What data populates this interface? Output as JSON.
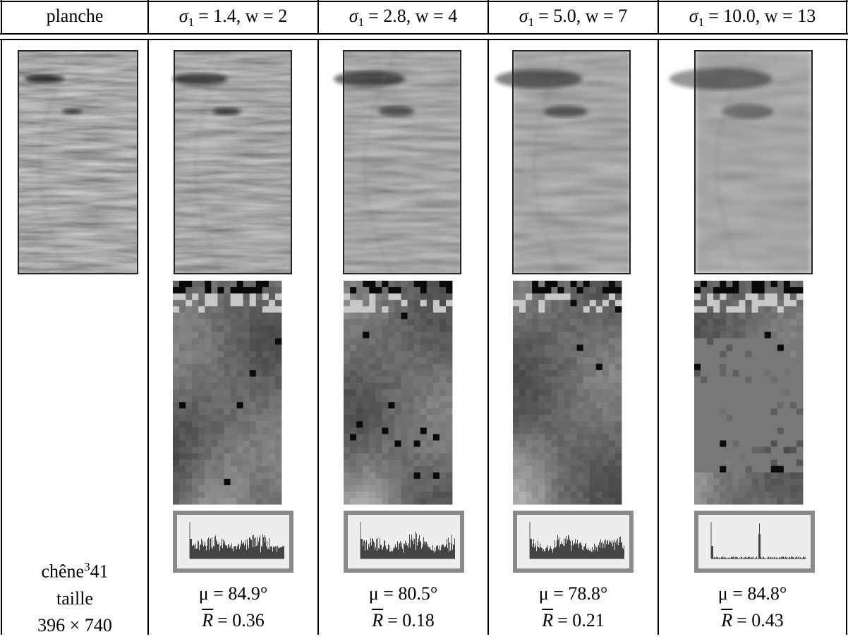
{
  "table": {
    "header": {
      "first": "planche",
      "columns": [
        {
          "symbol": "σ",
          "sub": "1",
          "rest": "= 1.4, w = 2"
        },
        {
          "symbol": "σ",
          "sub": "1",
          "rest": "= 2.8, w = 4"
        },
        {
          "symbol": "σ",
          "sub": "1",
          "rest": "= 5.0, w = 7"
        },
        {
          "symbol": "σ",
          "sub": "1",
          "rest": "= 10.0, w = 13"
        }
      ]
    },
    "specimen": {
      "species": "chêne",
      "sup": "3",
      "id": "41",
      "size_label": "taille",
      "size": "396 × 740"
    },
    "results": [
      {
        "mu": "μ = 84.9°",
        "r_symbol": "R",
        "r_value": "= 0.36"
      },
      {
        "mu": "μ = 80.5°",
        "r_symbol": "R",
        "r_value": "= 0.18"
      },
      {
        "mu": "μ = 78.8°",
        "r_symbol": "R",
        "r_value": "= 0.21"
      },
      {
        "mu": "μ = 84.8°",
        "r_symbol": "R",
        "r_value": "= 0.43"
      }
    ]
  }
}
